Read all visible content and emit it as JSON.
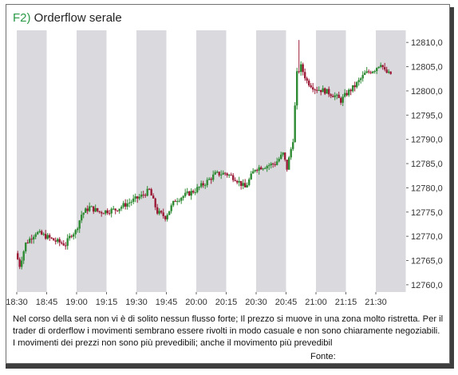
{
  "header": {
    "figure_label": "F2)",
    "title": "Orderflow serale"
  },
  "chart_data": {
    "type": "candlestick",
    "title": "Orderflow serale",
    "x_ticks": [
      "18:30",
      "18:45",
      "19:00",
      "19:15",
      "19:30",
      "19:45",
      "20:00",
      "20:15",
      "20:30",
      "20:45",
      "21:00",
      "21:15",
      "21:30"
    ],
    "y_ticks": [
      "12760,0",
      "12765,0",
      "12770,0",
      "12775,0",
      "12780,0",
      "12785,0",
      "12790,0",
      "12795,0",
      "12800,0",
      "12805,0",
      "12810,0"
    ],
    "ylim": [
      12758.5,
      12812.5
    ],
    "time_range": [
      "18:30",
      "21:37"
    ],
    "shaded_bands": "alternating 15-minute bands, grey from :30 and :00 starts",
    "colors": {
      "up": "#2e8b34",
      "down": "#9c1c38",
      "band": "#d9d9de",
      "axis_text": "#333333"
    },
    "anchors": [
      [
        "18:30",
        12766.5
      ],
      [
        "18:32",
        12764.0
      ],
      [
        "18:35",
        12768.5
      ],
      [
        "18:40",
        12770.8
      ],
      [
        "18:45",
        12770.0
      ],
      [
        "18:50",
        12769.0
      ],
      [
        "18:55",
        12768.3
      ],
      [
        "18:58",
        12770.5
      ],
      [
        "19:00",
        12771.0
      ],
      [
        "19:03",
        12774.5
      ],
      [
        "19:07",
        12776.0
      ],
      [
        "19:12",
        12775.0
      ],
      [
        "19:20",
        12775.5
      ],
      [
        "19:27",
        12777.0
      ],
      [
        "19:33",
        12778.3
      ],
      [
        "19:37",
        12779.5
      ],
      [
        "19:41",
        12775.0
      ],
      [
        "19:45",
        12774.0
      ],
      [
        "19:50",
        12777.5
      ],
      [
        "20:00",
        12779.5
      ],
      [
        "20:05",
        12781.0
      ],
      [
        "20:10",
        12782.8
      ],
      [
        "20:15",
        12783.0
      ],
      [
        "20:20",
        12782.0
      ],
      [
        "20:25",
        12780.0
      ],
      [
        "20:30",
        12784.0
      ],
      [
        "20:35",
        12784.5
      ],
      [
        "20:40",
        12785.0
      ],
      [
        "20:44",
        12787.0
      ],
      [
        "20:46",
        12784.0
      ],
      [
        "20:49",
        12790.0
      ],
      [
        "20:51",
        12803.5
      ],
      [
        "20:53",
        12805.0
      ],
      [
        "20:56",
        12802.0
      ],
      [
        "21:00",
        12800.5
      ],
      [
        "21:05",
        12800.0
      ],
      [
        "21:10",
        12799.0
      ],
      [
        "21:13",
        12798.0
      ],
      [
        "21:16",
        12799.5
      ],
      [
        "21:20",
        12801.0
      ],
      [
        "21:25",
        12803.5
      ],
      [
        "21:30",
        12804.5
      ],
      [
        "21:33",
        12805.8
      ],
      [
        "21:35",
        12804.0
      ],
      [
        "21:37",
        12803.5
      ]
    ]
  },
  "caption": {
    "text": "Nel corso della sera non vi è di solito nessun flusso forte; Il prezzo si muove in una zona molto ristretta. Per il trader di orderflow i movimenti sembrano essere rivolti in modo casuale e non sono chiaramente negoziabili. I movimenti dei prezzi non sono più prevedibili; anche il movimento più prevedibil",
    "source_label": "Fonte:"
  }
}
